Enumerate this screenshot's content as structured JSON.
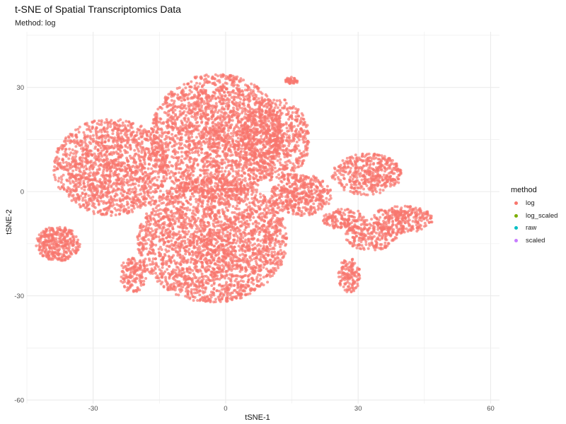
{
  "chart_data": {
    "type": "scatter",
    "title": "t-SNE of Spatial Transcriptomics Data",
    "subtitle": "Method: log",
    "xlabel": "tSNE-1",
    "ylabel": "tSNE-2",
    "xlim": [
      -45,
      62
    ],
    "ylim": [
      -61,
      46
    ],
    "xticks": [
      -30,
      0,
      30,
      60
    ],
    "yticks": [
      -60,
      -30,
      0,
      30
    ],
    "grid": true,
    "legend": {
      "title": "method",
      "position": "right",
      "entries": [
        {
          "label": "log",
          "color": "#F8766D"
        },
        {
          "label": "log_scaled",
          "color": "#7CAE00"
        },
        {
          "label": "raw",
          "color": "#00BFC4"
        },
        {
          "label": "scaled",
          "color": "#C77CFF"
        }
      ]
    },
    "series": [
      {
        "name": "log",
        "color": "#F8766D",
        "clusters": [
          {
            "cx": -3,
            "cy": -14,
            "rx": 17,
            "ry": 18,
            "n": 2600
          },
          {
            "cx": -2,
            "cy": 16,
            "rx": 15,
            "ry": 18,
            "n": 2200
          },
          {
            "cx": -26,
            "cy": 7,
            "rx": 13,
            "ry": 14,
            "n": 1500
          },
          {
            "cx": 11,
            "cy": 15,
            "rx": 8,
            "ry": 12,
            "n": 700
          },
          {
            "cx": 17,
            "cy": -1,
            "rx": 7,
            "ry": 6,
            "n": 450
          },
          {
            "cx": -38,
            "cy": -15,
            "rx": 5,
            "ry": 5,
            "n": 350
          },
          {
            "cx": -21,
            "cy": -24,
            "rx": 3,
            "ry": 5,
            "n": 150
          },
          {
            "cx": 32,
            "cy": 5,
            "rx": 8,
            "ry": 6,
            "n": 450
          },
          {
            "cx": 40,
            "cy": -8,
            "rx": 7,
            "ry": 4,
            "n": 300
          },
          {
            "cx": 33,
            "cy": -13,
            "rx": 6,
            "ry": 4,
            "n": 220
          },
          {
            "cx": 27,
            "cy": -8,
            "rx": 5,
            "ry": 3,
            "n": 160
          },
          {
            "cx": 28,
            "cy": -24,
            "rx": 2.5,
            "ry": 5,
            "n": 140
          },
          {
            "cx": 15,
            "cy": 32,
            "rx": 1.5,
            "ry": 1,
            "n": 40
          }
        ]
      }
    ]
  }
}
